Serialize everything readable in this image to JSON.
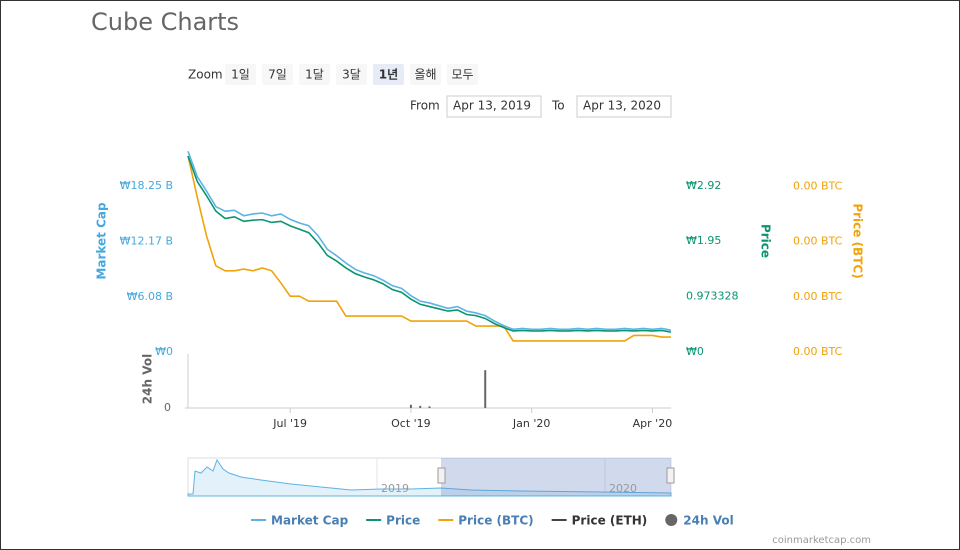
{
  "chart_data": {
    "type": "line",
    "title": "Cube Charts",
    "zoom_label": "Zoom",
    "zoom_buttons": [
      "1일",
      "7일",
      "1달",
      "3달",
      "1년",
      "올해",
      "모두"
    ],
    "zoom_selected": 4,
    "from_label": "From",
    "from_date": "Apr 13, 2019",
    "to_label": "To",
    "to_date": "Apr 13, 2020",
    "categories": [
      null,
      null,
      null,
      null,
      null,
      null,
      null,
      null,
      null,
      null,
      null,
      "Jul '19",
      null,
      null,
      null,
      null,
      null,
      null,
      null,
      null,
      null,
      null,
      null,
      null,
      "Oct '19",
      null,
      null,
      null,
      null,
      null,
      null,
      null,
      null,
      null,
      null,
      null,
      null,
      "Jan '20",
      null,
      null,
      null,
      null,
      null,
      null,
      null,
      null,
      null,
      null,
      null,
      null,
      "Apr '20",
      null,
      null
    ],
    "ylabel": "Market Cap",
    "ylim": [
      0,
      24.33
    ],
    "yticks": [
      {
        "value": 0,
        "label": "₩0"
      },
      {
        "value": 6.08,
        "label": "₩6.08 B"
      },
      {
        "value": 12.17,
        "label": "₩12.17 B"
      },
      {
        "value": 18.25,
        "label": "₩18.25 B"
      }
    ],
    "y2label": "Price",
    "y2lim": [
      0,
      3.89
    ],
    "y2ticks": [
      {
        "value": 0,
        "label": "₩0"
      },
      0.973328,
      {
        "value": 1.95,
        "label": "₩1.95"
      },
      {
        "value": 2.92,
        "label": "₩2.92"
      }
    ],
    "y3label": "Price (BTC)",
    "y3lim": [
      0,
      0.0004
    ],
    "y3ticks": [
      {
        "value": 0,
        "label": "0.00 BTC"
      },
      {
        "value": 0.0001,
        "label": "0.00 BTC"
      },
      {
        "value": 0.0002,
        "label": "0.00 BTC"
      },
      {
        "value": 0.0003,
        "label": "0.00 BTC"
      }
    ],
    "series": [
      {
        "name": "Market Cap",
        "color": "#5cb3e4",
        "axis": "y",
        "values": [
          22.1,
          19.3,
          17.7,
          16.0,
          15.5,
          15.6,
          15.0,
          15.2,
          15.3,
          15.0,
          15.2,
          14.6,
          14.2,
          13.9,
          12.8,
          11.3,
          10.6,
          9.8,
          9.1,
          8.7,
          8.4,
          7.9,
          7.3,
          7.0,
          6.2,
          5.6,
          5.4,
          5.1,
          4.8,
          5.0,
          4.5,
          4.3,
          4.0,
          3.4,
          2.9,
          2.5,
          2.6,
          2.5,
          2.5,
          2.6,
          2.5,
          2.5,
          2.6,
          2.5,
          2.6,
          2.5,
          2.5,
          2.6,
          2.5,
          2.6,
          2.5,
          2.6,
          2.4
        ]
      },
      {
        "name": "Price",
        "color": "#0a9470",
        "axis": "y2",
        "values": [
          3.45,
          3.0,
          2.75,
          2.48,
          2.35,
          2.38,
          2.3,
          2.32,
          2.33,
          2.28,
          2.3,
          2.22,
          2.16,
          2.1,
          1.92,
          1.7,
          1.6,
          1.48,
          1.38,
          1.32,
          1.27,
          1.2,
          1.1,
          1.05,
          0.93,
          0.84,
          0.8,
          0.76,
          0.72,
          0.74,
          0.66,
          0.64,
          0.59,
          0.5,
          0.43,
          0.37,
          0.38,
          0.37,
          0.37,
          0.38,
          0.37,
          0.37,
          0.38,
          0.37,
          0.38,
          0.37,
          0.37,
          0.38,
          0.37,
          0.38,
          0.37,
          0.38,
          0.35
        ]
      },
      {
        "name": "Price (BTC)",
        "color": "#f0a30a",
        "axis": "y3",
        "values": [
          0.000355,
          0.00028,
          0.00021,
          0.000156,
          0.000147,
          0.000147,
          0.00015,
          0.000147,
          0.000152,
          0.000147,
          0.000125,
          0.000101,
          0.000101,
          9.2e-05,
          9.2e-05,
          9.2e-05,
          9.2e-05,
          6.5e-05,
          6.5e-05,
          6.5e-05,
          6.5e-05,
          6.5e-05,
          6.5e-05,
          6.5e-05,
          5.6e-05,
          5.6e-05,
          5.6e-05,
          5.6e-05,
          5.6e-05,
          5.6e-05,
          5.6e-05,
          4.7e-05,
          4.7e-05,
          4.7e-05,
          4.7e-05,
          2e-05,
          2e-05,
          2e-05,
          2e-05,
          2e-05,
          2e-05,
          2e-05,
          2e-05,
          2e-05,
          2e-05,
          2e-05,
          2e-05,
          2e-05,
          3e-05,
          3e-05,
          3e-05,
          2.7e-05,
          2.7e-05
        ]
      },
      {
        "name": "Price (ETH)",
        "color": "#444444",
        "visible": false
      }
    ],
    "volume": {
      "name": "24h Vol",
      "ylabel": "24h Vol",
      "color": "#666666",
      "ylim": [
        0,
        100
      ],
      "yticks": [
        0
      ],
      "values": [
        0,
        0,
        0,
        0,
        0,
        0,
        0,
        0,
        0,
        0,
        0,
        0,
        0,
        0,
        0,
        0,
        0,
        0,
        0,
        0,
        0,
        0,
        0,
        0,
        6,
        4,
        3,
        0,
        0,
        0,
        0,
        0,
        70,
        0,
        0,
        0,
        0,
        0,
        0,
        0,
        0,
        0,
        0,
        0,
        0,
        0,
        0,
        0,
        0,
        0,
        0,
        0,
        0
      ]
    },
    "navigator_labels": [
      "2019",
      "2020"
    ],
    "credit": "coinmarketcap.com"
  }
}
